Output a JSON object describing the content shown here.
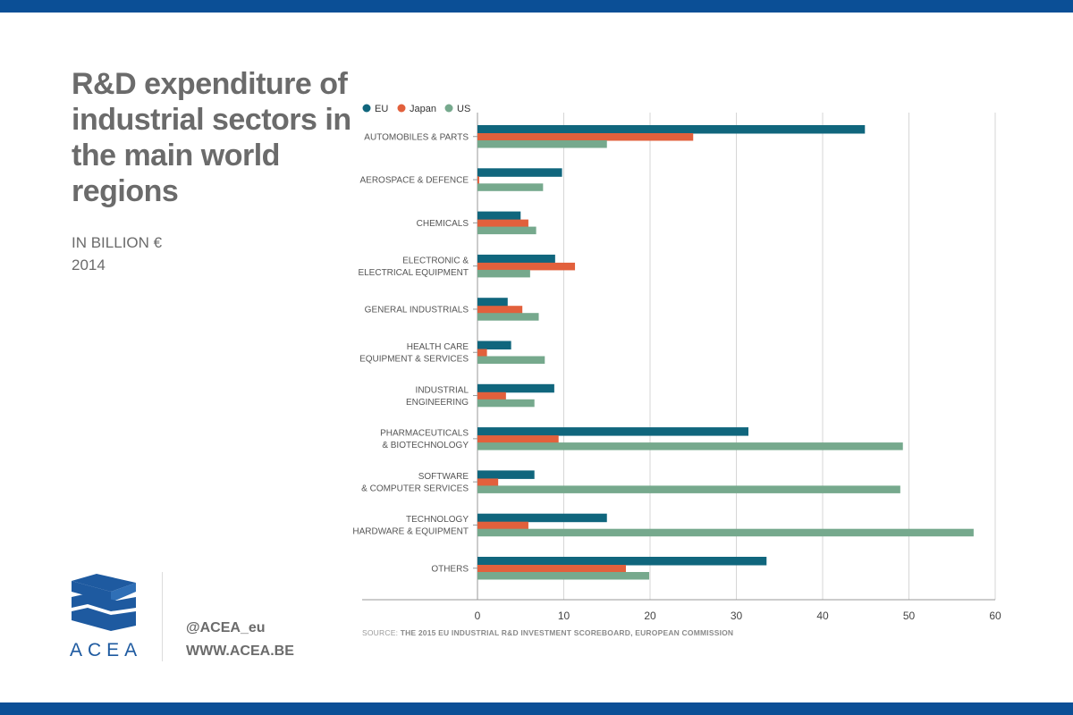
{
  "header": {
    "title": "R&D expenditure of industrial sectors in the main world regions",
    "subtitle_line1": "IN BILLION €",
    "subtitle_line2": "2014"
  },
  "footer": {
    "logo_text": "ACEA",
    "twitter": "@ACEA_eu",
    "website": "WWW.ACEA.BE",
    "source_prefix": "SOURCE:",
    "source_text": "THE 2015 EU INDUSTRIAL R&D INVESTMENT SCOREBOARD, EUROPEAN COMMISSION"
  },
  "colors": {
    "band": "#0b4f96",
    "eu": "#10667d",
    "japan": "#e2603c",
    "us": "#76a98d",
    "grid": "#d6d6d6",
    "axis": "#999999",
    "label": "#555555",
    "logo": "#1e5aa0"
  },
  "chart_data": {
    "type": "bar",
    "orientation": "horizontal",
    "categories": [
      [
        "AUTOMOBILES & PARTS"
      ],
      [
        "AEROSPACE & DEFENCE"
      ],
      [
        "CHEMICALS"
      ],
      [
        "ELECTRONIC &",
        "ELECTRICAL EQUIPMENT"
      ],
      [
        "GENERAL INDUSTRIALS"
      ],
      [
        "HEALTH CARE",
        "EQUIPMENT & SERVICES"
      ],
      [
        "INDUSTRIAL",
        "ENGINEERING"
      ],
      [
        "PHARMACEUTICALS",
        "& BIOTECHNOLOGY"
      ],
      [
        "SOFTWARE",
        "& COMPUTER SERVICES"
      ],
      [
        "TECHNOLOGY",
        "HARDWARE & EQUIPMENT"
      ],
      [
        "OTHERS"
      ]
    ],
    "series": [
      {
        "name": "EU",
        "values": [
          44.9,
          9.8,
          5.0,
          9.0,
          3.5,
          3.9,
          8.9,
          31.4,
          6.6,
          15.0,
          33.5
        ]
      },
      {
        "name": "Japan",
        "values": [
          25.0,
          0.2,
          5.9,
          11.3,
          5.2,
          1.1,
          3.3,
          9.4,
          2.4,
          5.9,
          17.2
        ]
      },
      {
        "name": "US",
        "values": [
          15.0,
          7.6,
          6.8,
          6.1,
          7.1,
          7.8,
          6.6,
          49.3,
          49.0,
          57.5,
          19.9
        ]
      }
    ],
    "xticks": [
      "0",
      "10",
      "20",
      "30",
      "40",
      "50",
      "60"
    ],
    "xlim": [
      0,
      60
    ],
    "grid": true,
    "legend": "top-left"
  }
}
